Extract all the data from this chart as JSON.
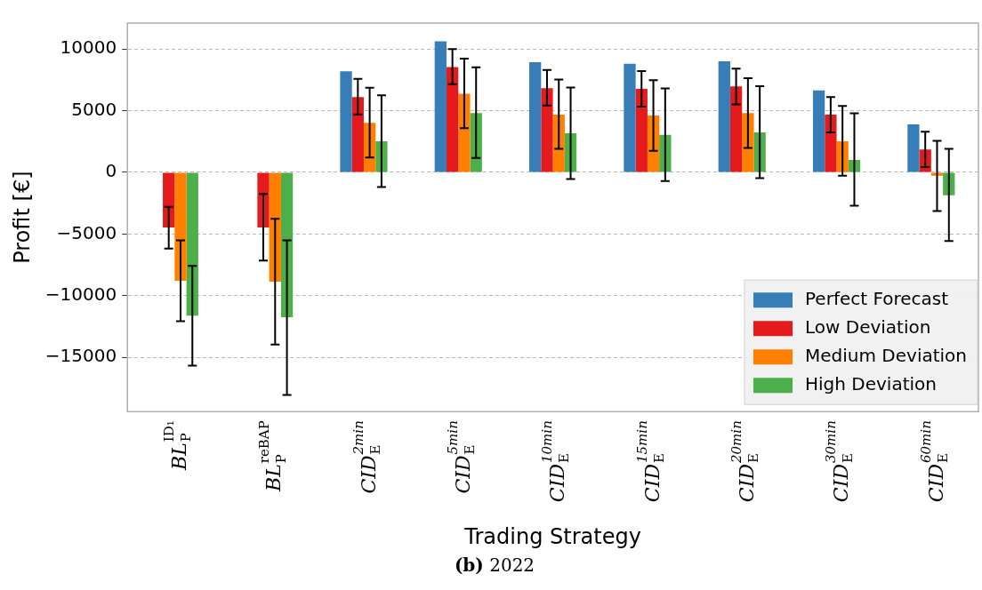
{
  "chart_data": {
    "type": "bar",
    "xlabel": "Trading Strategy",
    "ylabel": "Profit [€]",
    "categories": [
      "BL$_{P}$$^{ID₁}$",
      "BL$_{P}$$^{reBAP}$",
      "CID$_{E}$$^{2min}$",
      "CID$_{E}$$^{5min}$",
      "CID$_{E}$$^{10min}$",
      "CID$_{E}$$^{15min}$",
      "CID$_{E}$$^{20min}$",
      "CID$_{E}$$^{30min}$",
      "CID$_{E}$$^{60min}$"
    ],
    "series": [
      {
        "name": "Perfect Forecast",
        "color": "#377eb8",
        "values": [
          0,
          0,
          8190,
          10630,
          8930,
          8800,
          9000,
          6640,
          3890
        ],
        "errors": [
          null,
          null,
          null,
          null,
          null,
          null,
          null,
          null,
          null
        ]
      },
      {
        "name": "Low Deviation",
        "color": "#e41a1c",
        "values": [
          -4480,
          -4480,
          6110,
          8540,
          6830,
          6770,
          6970,
          4670,
          1860
        ],
        "errors": [
          [
            -6180,
            -2800
          ],
          [
            -7160,
            -1750
          ],
          [
            4690,
            7580
          ],
          [
            7140,
            10000
          ],
          [
            5420,
            8300
          ],
          [
            5330,
            8210
          ],
          [
            5500,
            8410
          ],
          [
            3230,
            6110
          ],
          [
            420,
            3300
          ]
        ]
      },
      {
        "name": "Medium Deviation",
        "color": "#ff7f00",
        "values": [
          -8800,
          -8870,
          4020,
          6380,
          4670,
          4610,
          4800,
          2510,
          -280
        ],
        "errors": [
          [
            -12070,
            -5520
          ],
          [
            -13970,
            -3760
          ],
          [
            1200,
            6860
          ],
          [
            3580,
            9210
          ],
          [
            1900,
            7530
          ],
          [
            1750,
            7470
          ],
          [
            1970,
            7640
          ],
          [
            -280,
            5390
          ],
          [
            -3140,
            2560
          ]
        ]
      },
      {
        "name": "High Deviation",
        "color": "#4daf4a",
        "values": [
          -11620,
          -11750,
          2510,
          4800,
          3170,
          3040,
          3230,
          1000,
          -1860
        ],
        "errors": [
          [
            -15680,
            -7580
          ],
          [
            -18060,
            -5520
          ],
          [
            -1200,
            6250
          ],
          [
            1160,
            8520
          ],
          [
            -550,
            6880
          ],
          [
            -700,
            6810
          ],
          [
            -480,
            6990
          ],
          [
            -2710,
            4780
          ],
          [
            -5570,
            1900
          ]
        ]
      }
    ],
    "ylim": [
      -19400,
      12100
    ],
    "yticks": [
      {
        "value": -15000,
        "label": "−15000"
      },
      {
        "value": -10000,
        "label": "−10000"
      },
      {
        "value": -5000,
        "label": "−5000"
      },
      0,
      5000,
      10000
    ],
    "grid": "y",
    "legend": "bottom right",
    "annotations": [
      "(b) 2022"
    ]
  }
}
